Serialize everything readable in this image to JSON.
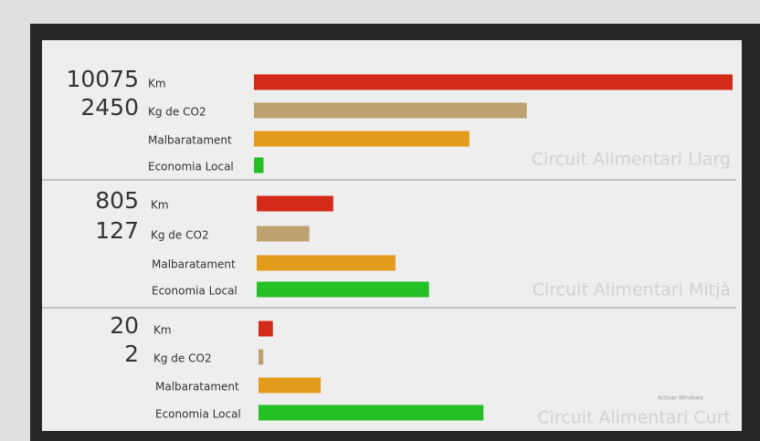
{
  "chart_data": [
    {
      "type": "bar",
      "orientation": "horizontal",
      "title": "Circuit Alimentari Llarg",
      "categories": [
        "Km",
        "Kg de CO2",
        "Malbaratament",
        "Economia Local"
      ],
      "figures": [
        "10075",
        "2450",
        null,
        null
      ],
      "values": [
        100,
        57,
        45,
        2
      ],
      "colors": [
        "#d42a1a",
        "#bca171",
        "#e39b1c",
        "#25c025"
      ],
      "xlim": [
        0,
        100
      ]
    },
    {
      "type": "bar",
      "orientation": "horizontal",
      "title": "Circuit Alimentari Mitjà",
      "categories": [
        "Km",
        "Kg de CO2",
        "Malbaratament",
        "Economia Local"
      ],
      "figures": [
        "805",
        "127",
        null,
        null
      ],
      "values": [
        16,
        11,
        29,
        36
      ],
      "colors": [
        "#d42a1a",
        "#bca171",
        "#e39b1c",
        "#25c025"
      ],
      "xlim": [
        0,
        100
      ]
    },
    {
      "type": "bar",
      "orientation": "horizontal",
      "title": "Circuit Alimentari Curt",
      "categories": [
        "Km",
        "Kg de CO2",
        "Malbaratament",
        "Economia Local"
      ],
      "figures": [
        "20",
        "2",
        null,
        null
      ],
      "values": [
        3,
        1,
        13,
        47
      ],
      "colors": [
        "#d42a1a",
        "#bca171",
        "#e39b1c",
        "#25c025"
      ],
      "xlim": [
        0,
        100
      ]
    }
  ],
  "watermark": "Activar Windows"
}
